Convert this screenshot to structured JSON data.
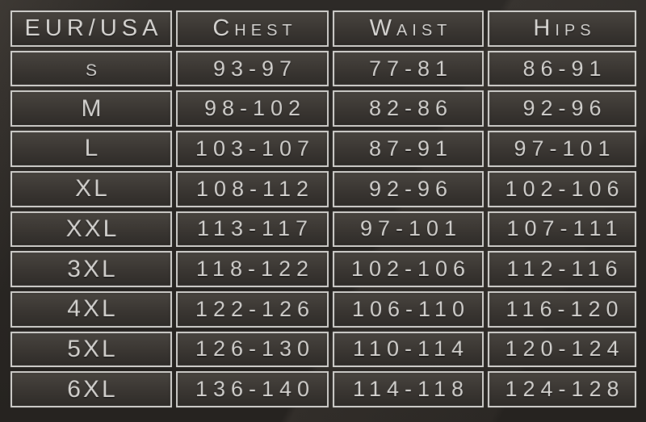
{
  "chart_data": {
    "type": "table",
    "title": "",
    "columns": [
      "EUR/USA",
      "Chest",
      "Waist",
      "Hips"
    ],
    "rows": [
      [
        "s",
        "93-97",
        "77-81",
        "86-91"
      ],
      [
        "M",
        "98-102",
        "82-86",
        "92-96"
      ],
      [
        "L",
        "103-107",
        "87-91",
        "97-101"
      ],
      [
        "XL",
        "108-112",
        "92-96",
        "102-106"
      ],
      [
        "XXL",
        "113-117",
        "97-101",
        "107-111"
      ],
      [
        "3XL",
        "118-122",
        "102-106",
        "112-116"
      ],
      [
        "4XL",
        "122-126",
        "106-110",
        "116-120"
      ],
      [
        "5XL",
        "126-130",
        "110-114",
        "120-124"
      ],
      [
        "6XL",
        "136-140",
        "114-118",
        "124-128"
      ]
    ]
  },
  "colors": {
    "page_background": "#2a2724",
    "cell_background_top": "#48443f",
    "cell_background_bottom": "#2f2c29",
    "border": "#dedddb",
    "text": "#d9d7d4"
  }
}
